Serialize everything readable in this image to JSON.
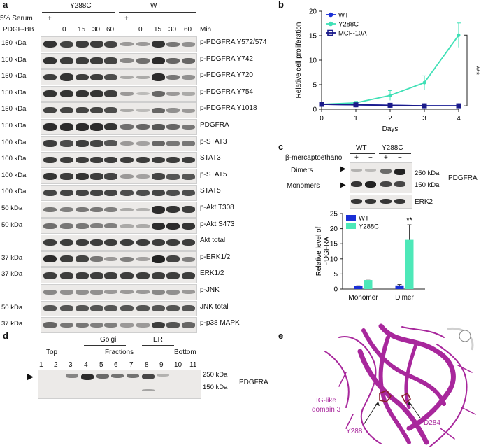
{
  "panel_a": {
    "letter": "a",
    "group_y288c": "Y288C",
    "group_wt": "WT",
    "serum_label": "5% Serum",
    "pdgf_label": "PDGF-BB",
    "min_label": "Min",
    "serum_marks": [
      "+",
      "",
      "",
      "",
      "",
      "+",
      "",
      "",
      "",
      ""
    ],
    "minutes": [
      "",
      "0",
      "15",
      "30",
      "60",
      "",
      "0",
      "15",
      "30",
      "60"
    ],
    "blots": [
      {
        "kda": "150 kDa",
        "label": "p-PDGFRA Y572/574",
        "levels": [
          0.9,
          0.8,
          0.85,
          0.85,
          0.8,
          0.3,
          0.3,
          0.9,
          0.5,
          0.35
        ]
      },
      {
        "kda": "150 kDa",
        "label": "p-PDGFRA Y742",
        "levels": [
          0.9,
          0.85,
          0.85,
          0.85,
          0.8,
          0.4,
          0.55,
          0.95,
          0.6,
          0.6
        ]
      },
      {
        "kda": "150 kDa",
        "label": "p-PDGFRA Y720",
        "levels": [
          0.85,
          0.9,
          0.85,
          0.85,
          0.75,
          0.2,
          0.2,
          0.95,
          0.5,
          0.35
        ]
      },
      {
        "kda": "150 kDa",
        "label": "p-PDGFRA Y754",
        "levels": [
          0.9,
          0.9,
          0.9,
          0.9,
          0.85,
          0.3,
          0.1,
          0.6,
          0.3,
          0.2
        ]
      },
      {
        "kda": "150 kDa",
        "label": "p-PDGFRA Y1018",
        "levels": [
          0.8,
          0.8,
          0.8,
          0.8,
          0.75,
          0.2,
          0.1,
          0.6,
          0.35,
          0.3
        ]
      },
      {
        "kda": "150 kDa",
        "label": "PDGFRA",
        "levels": [
          0.95,
          0.95,
          0.95,
          0.95,
          0.9,
          0.55,
          0.6,
          0.7,
          0.6,
          0.5
        ]
      },
      {
        "kda": "100 kDa",
        "label": "p-STAT3",
        "levels": [
          0.85,
          0.75,
          0.85,
          0.8,
          0.7,
          0.3,
          0.25,
          0.6,
          0.5,
          0.5
        ]
      },
      {
        "kda": "100 kDa",
        "label": "STAT3",
        "levels": [
          0.85,
          0.85,
          0.85,
          0.85,
          0.85,
          0.85,
          0.85,
          0.85,
          0.85,
          0.85
        ]
      },
      {
        "kda": "100 kDa",
        "label": "p-STAT5",
        "levels": [
          0.9,
          0.85,
          0.9,
          0.85,
          0.8,
          0.3,
          0.25,
          0.8,
          0.7,
          0.7
        ]
      },
      {
        "kda": "100 kDa",
        "label": "STAT5",
        "levels": [
          0.8,
          0.8,
          0.8,
          0.8,
          0.8,
          0.75,
          0.75,
          0.8,
          0.75,
          0.75
        ]
      },
      {
        "kda": "50 kDa",
        "label": "p-Akt T308",
        "levels": [
          0.5,
          0.45,
          0.5,
          0.5,
          0.45,
          0.2,
          0.15,
          0.95,
          0.9,
          0.85
        ]
      },
      {
        "kda": "50 kDa",
        "label": "p-Akt S473",
        "levels": [
          0.55,
          0.5,
          0.5,
          0.45,
          0.45,
          0.2,
          0.2,
          0.95,
          0.95,
          0.9
        ]
      },
      {
        "kda": "",
        "label": "Akt total",
        "levels": [
          0.85,
          0.85,
          0.85,
          0.85,
          0.85,
          0.85,
          0.85,
          0.85,
          0.85,
          0.85
        ]
      },
      {
        "kda": "37 kDa",
        "label": "p-ERK1/2",
        "levels": [
          0.95,
          0.85,
          0.8,
          0.5,
          0.3,
          0.45,
          0.25,
          1.0,
          0.8,
          0.45
        ]
      },
      {
        "kda": "37 kDa",
        "label": "ERK1/2",
        "levels": [
          0.85,
          0.85,
          0.85,
          0.85,
          0.85,
          0.85,
          0.85,
          0.85,
          0.85,
          0.85
        ]
      },
      {
        "kda": "",
        "label": "p-JNK",
        "levels": [
          0.4,
          0.35,
          0.35,
          0.35,
          0.3,
          0.3,
          0.3,
          0.4,
          0.35,
          0.3
        ]
      },
      {
        "kda": "50 kDa",
        "label": "JNK total",
        "levels": [
          0.7,
          0.7,
          0.7,
          0.7,
          0.7,
          0.7,
          0.7,
          0.7,
          0.7,
          0.7
        ]
      },
      {
        "kda": "37 kDa",
        "label": "p-p38 MAPK",
        "levels": [
          0.6,
          0.5,
          0.5,
          0.45,
          0.45,
          0.3,
          0.3,
          0.85,
          0.7,
          0.6
        ]
      }
    ]
  },
  "panel_b": {
    "letter": "b",
    "chart_data": {
      "type": "line",
      "x": [
        0,
        1,
        2,
        3,
        4
      ],
      "xlabel": "Days",
      "ylabel": "Relative cell proliferation",
      "xlim": [
        0,
        4
      ],
      "ylim": [
        0,
        20
      ],
      "xticks": [
        "0",
        "1",
        "2",
        "3",
        "4"
      ],
      "yticks": [
        "0",
        "5",
        "10",
        "15",
        "20"
      ],
      "series": [
        {
          "name": "WT",
          "color": "#1a2fd6",
          "marker": "circle",
          "values": [
            1.0,
            0.9,
            0.8,
            0.7,
            0.7
          ]
        },
        {
          "name": "Y288C",
          "color": "#3fe0b6",
          "marker": "diamond",
          "values": [
            1.0,
            1.3,
            2.8,
            5.4,
            15.1
          ],
          "errors": [
            0,
            0.3,
            1.0,
            1.4,
            2.5
          ]
        },
        {
          "name": "MCF-10A",
          "color": "#1a1a8a",
          "marker": "square",
          "values": [
            1.0,
            0.9,
            0.8,
            0.7,
            0.7
          ]
        }
      ],
      "annotation": "***",
      "legend": "top-left"
    }
  },
  "panel_c": {
    "letter": "c",
    "wt": "WT",
    "y288c": "Y288C",
    "bme": "β-mercaptoethanol",
    "bme_marks": [
      "+",
      "−",
      "+",
      "−"
    ],
    "dimers": "Dimers",
    "monomers": "Monomers",
    "kda250": "250 kDa",
    "kda150": "150 kDa",
    "pdgfra": "PDGFRA",
    "erk2": "ERK2",
    "chart_data": {
      "type": "bar",
      "categories": [
        "Monomer",
        "Dimer"
      ],
      "ylabel": "Relative level of PDGFRA",
      "ylim": [
        0,
        25
      ],
      "yticks": [
        "0",
        "5",
        "10",
        "15",
        "20",
        "25"
      ],
      "series": [
        {
          "name": "WT",
          "color": "#1a2fd6",
          "values": [
            1.0,
            1.2
          ],
          "errors": [
            0.1,
            0.3
          ]
        },
        {
          "name": "Y288C",
          "color": "#4de8b8",
          "values": [
            3.0,
            16.3
          ],
          "errors": [
            0.3,
            5.0
          ]
        }
      ],
      "annotation": "**",
      "legend": "top-left"
    }
  },
  "panel_d": {
    "letter": "d",
    "top": "Top",
    "golgi": "Golgi",
    "fractions": "Fractions",
    "er": "ER",
    "bottom": "Bottom",
    "lanes": [
      "1",
      "2",
      "3",
      "4",
      "5",
      "6",
      "7",
      "8",
      "9",
      "10",
      "11"
    ],
    "kda250": "250 kDa",
    "kda150": "150 kDa",
    "pdgfra": "PDGFRA",
    "levels": [
      0,
      0,
      0.45,
      0.95,
      0.6,
      0.55,
      0.55,
      0.8,
      0.2,
      0,
      0
    ]
  },
  "panel_e": {
    "letter": "e",
    "domain_label_1": "IG-like",
    "domain_label_2": "domain 3",
    "y288": "Y288",
    "d284": "D284",
    "ribbon_color": "#a8279c"
  }
}
